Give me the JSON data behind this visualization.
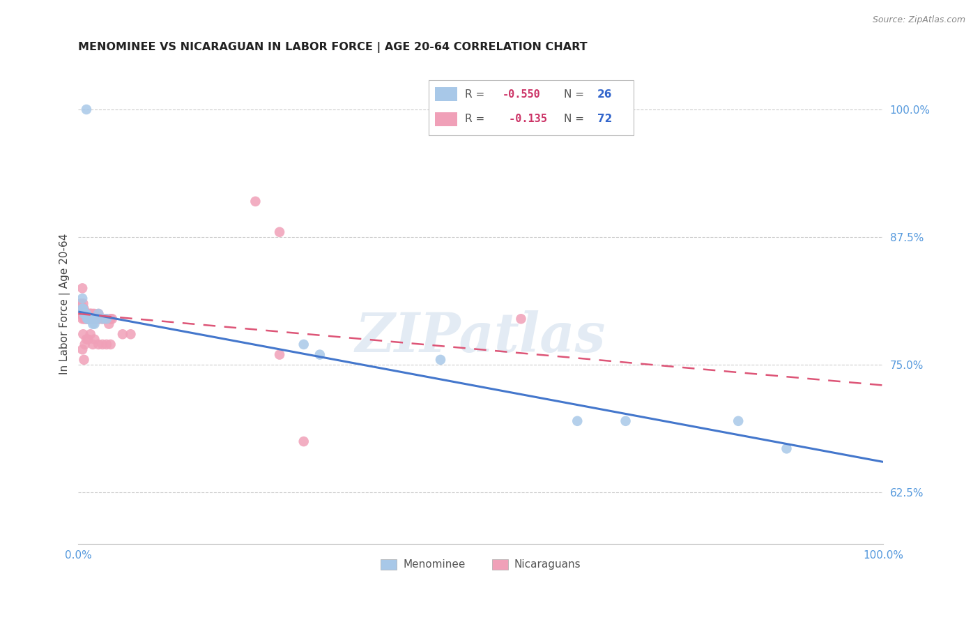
{
  "title": "MENOMINEE VS NICARAGUAN IN LABOR FORCE | AGE 20-64 CORRELATION CHART",
  "source": "Source: ZipAtlas.com",
  "ylabel": "In Labor Force | Age 20-64",
  "xlim": [
    0.0,
    1.0
  ],
  "ylim": [
    0.575,
    1.045
  ],
  "yticks": [
    0.625,
    0.75,
    0.875,
    1.0
  ],
  "menominee_R": -0.55,
  "menominee_N": 26,
  "nicaraguan_R": -0.135,
  "nicaraguan_N": 72,
  "menominee_color": "#a8c8e8",
  "nicaraguan_color": "#f0a0b8",
  "menominee_line_color": "#4477cc",
  "nicaraguan_line_color": "#dd5577",
  "background_color": "#ffffff",
  "grid_color": "#cccccc",
  "watermark": "ZIPatlas",
  "men_line_x0": 0.0,
  "men_line_y0": 0.802,
  "men_line_x1": 1.0,
  "men_line_y1": 0.655,
  "nic_line_x0": 0.0,
  "nic_line_y0": 0.8,
  "nic_line_x1": 1.0,
  "nic_line_y1": 0.73,
  "menominee_x": [
    0.005,
    0.005,
    0.006,
    0.007,
    0.008,
    0.009,
    0.01,
    0.011,
    0.012,
    0.013,
    0.015,
    0.016,
    0.018,
    0.02,
    0.022,
    0.025,
    0.03,
    0.035,
    0.28,
    0.3,
    0.45,
    0.62,
    0.68,
    0.82,
    0.88,
    0.01
  ],
  "menominee_y": [
    0.805,
    0.815,
    0.805,
    0.8,
    0.8,
    0.8,
    0.8,
    0.795,
    0.795,
    0.795,
    0.795,
    0.795,
    0.79,
    0.79,
    0.795,
    0.8,
    0.795,
    0.795,
    0.77,
    0.76,
    0.755,
    0.695,
    0.695,
    0.695,
    0.668,
    1.0
  ],
  "nicaraguan_x": [
    0.002,
    0.003,
    0.004,
    0.005,
    0.005,
    0.006,
    0.006,
    0.007,
    0.007,
    0.008,
    0.008,
    0.009,
    0.01,
    0.01,
    0.011,
    0.012,
    0.012,
    0.013,
    0.014,
    0.015,
    0.015,
    0.016,
    0.016,
    0.017,
    0.018,
    0.018,
    0.019,
    0.02,
    0.021,
    0.022,
    0.023,
    0.025,
    0.027,
    0.03,
    0.032,
    0.035,
    0.038,
    0.04,
    0.042,
    0.005,
    0.006,
    0.007,
    0.008,
    0.01,
    0.012,
    0.014,
    0.016,
    0.018,
    0.02,
    0.022,
    0.025,
    0.006,
    0.008,
    0.01,
    0.012,
    0.015,
    0.018,
    0.02,
    0.025,
    0.03,
    0.035,
    0.04,
    0.005,
    0.007,
    0.22,
    0.25,
    0.25,
    0.04,
    0.055,
    0.065,
    0.55,
    0.28
  ],
  "nicaraguan_y": [
    0.8,
    0.81,
    0.8,
    0.825,
    0.805,
    0.81,
    0.8,
    0.8,
    0.805,
    0.8,
    0.8,
    0.8,
    0.8,
    0.795,
    0.8,
    0.795,
    0.8,
    0.8,
    0.795,
    0.8,
    0.8,
    0.795,
    0.8,
    0.795,
    0.8,
    0.795,
    0.795,
    0.8,
    0.795,
    0.795,
    0.795,
    0.8,
    0.795,
    0.795,
    0.795,
    0.795,
    0.79,
    0.795,
    0.795,
    0.795,
    0.8,
    0.795,
    0.795,
    0.795,
    0.795,
    0.795,
    0.795,
    0.795,
    0.795,
    0.795,
    0.795,
    0.78,
    0.77,
    0.775,
    0.775,
    0.78,
    0.77,
    0.775,
    0.77,
    0.77,
    0.77,
    0.77,
    0.765,
    0.755,
    0.91,
    0.88,
    0.76,
    0.795,
    0.78,
    0.78,
    0.795,
    0.675
  ]
}
